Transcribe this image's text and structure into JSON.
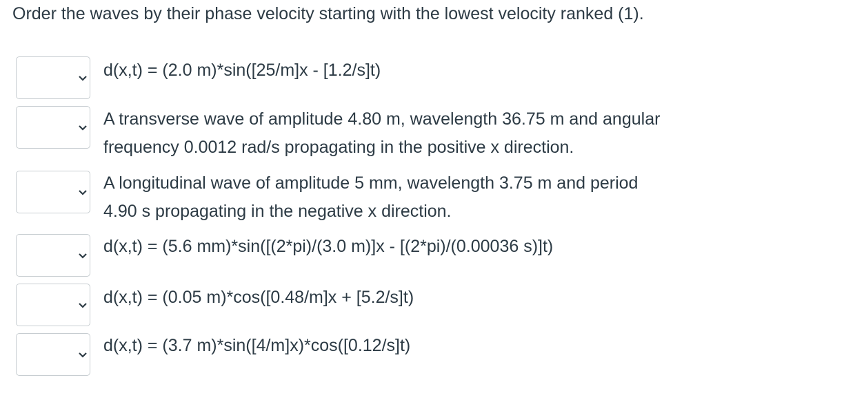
{
  "question": "Order the waves by their phase velocity starting with the lowest velocity ranked (1).",
  "items": [
    {
      "lines": [
        "d(x,t) = (2.0 m)*sin([25/m]x - [1.2/s]t)"
      ]
    },
    {
      "lines": [
        "A transverse wave of amplitude 4.80 m, wavelength 36.75 m and angular",
        "frequency 0.0012 rad/s propagating in the positive x direction."
      ]
    },
    {
      "lines": [
        "A longitudinal wave of amplitude 5 mm, wavelength 3.75 m and period",
        "4.90 s propagating in the negative x direction."
      ]
    },
    {
      "lines": [
        "d(x,t) = (5.6 mm)*sin([(2*pi)/(3.0 m)]x - [(2*pi)/(0.00036 s)]t)"
      ]
    },
    {
      "lines": [
        "d(x,t) = (0.05 m)*cos([0.48/m]x + [5.2/s]t)"
      ]
    },
    {
      "lines": [
        "d(x,t) = (3.7 m)*sin([4/m]x)*cos([0.12/s]t)"
      ]
    }
  ]
}
